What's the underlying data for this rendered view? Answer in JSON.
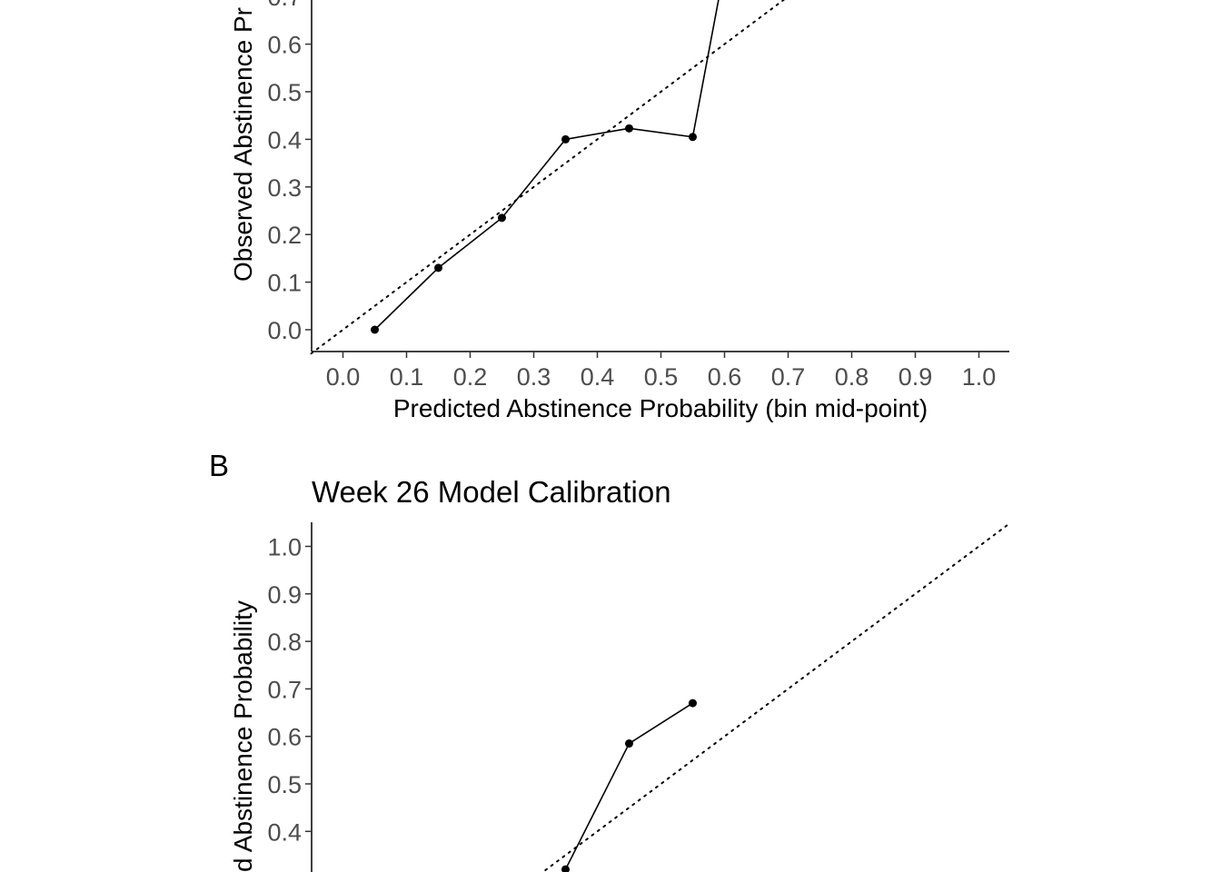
{
  "chart_data": [
    {
      "panel": "",
      "type": "line",
      "title": "",
      "xlabel": "Predicted Abstinence Probability (bin mid-point)",
      "ylabel": "Observed Abstinence Pr",
      "xlim": [
        -0.05,
        1.05
      ],
      "ylim": [
        -0.05,
        0.7
      ],
      "x_ticks": [
        "0.0",
        "0.1",
        "0.2",
        "0.3",
        "0.4",
        "0.5",
        "0.6",
        "0.7",
        "0.8",
        "0.9",
        "1.0"
      ],
      "y_ticks": [
        "0.0",
        "0.1",
        "0.2",
        "0.3",
        "0.4",
        "0.5",
        "0.6",
        "0.7"
      ],
      "reference_line": "y = x (dotted)",
      "series": [
        {
          "x": [
            0.05,
            0.15,
            0.25,
            0.35,
            0.45,
            0.55,
            0.6
          ],
          "y": [
            0.0,
            0.13,
            0.235,
            0.4,
            0.423,
            0.405,
            0.76
          ],
          "markers": [
            true,
            true,
            true,
            true,
            true,
            true,
            false
          ]
        }
      ]
    },
    {
      "panel": "B",
      "type": "line",
      "title": "Week 26 Model Calibration",
      "xlabel": "",
      "ylabel": "d Abstinence Probability",
      "xlim": [
        -0.05,
        1.05
      ],
      "ylim": [
        0.35,
        1.05
      ],
      "y_ticks": [
        "0.4",
        "0.5",
        "0.6",
        "0.7",
        "0.8",
        "0.9",
        "1.0"
      ],
      "reference_line": "y = x (dotted)",
      "series": [
        {
          "x": [
            0.35,
            0.45,
            0.55
          ],
          "y": [
            0.32,
            0.585,
            0.67
          ],
          "markers": [
            true,
            true,
            true
          ]
        }
      ]
    }
  ]
}
